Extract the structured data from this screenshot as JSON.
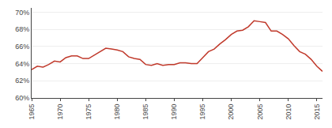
{
  "chart_data": {
    "type": "line",
    "x": [
      1965,
      1966,
      1967,
      1968,
      1969,
      1970,
      1971,
      1972,
      1973,
      1974,
      1975,
      1976,
      1977,
      1978,
      1979,
      1980,
      1981,
      1982,
      1983,
      1984,
      1985,
      1986,
      1987,
      1988,
      1989,
      1990,
      1991,
      1992,
      1993,
      1994,
      1995,
      1996,
      1997,
      1998,
      1999,
      2000,
      2001,
      2002,
      2003,
      2004,
      2005,
      2006,
      2007,
      2008,
      2009,
      2010,
      2011,
      2012,
      2013,
      2014,
      2015,
      2016
    ],
    "values": [
      63.3,
      63.7,
      63.6,
      63.9,
      64.3,
      64.2,
      64.7,
      64.9,
      64.9,
      64.6,
      64.6,
      65.0,
      65.4,
      65.8,
      65.7,
      65.6,
      65.4,
      64.8,
      64.6,
      64.5,
      63.9,
      63.8,
      64.0,
      63.8,
      63.9,
      63.9,
      64.1,
      64.1,
      64.0,
      64.0,
      64.7,
      65.4,
      65.7,
      66.3,
      66.8,
      67.4,
      67.8,
      67.9,
      68.3,
      69.0,
      68.9,
      68.8,
      67.8,
      67.8,
      67.4,
      66.9,
      66.1,
      65.4,
      65.1,
      64.5,
      63.7,
      63.1
    ],
    "color": "#c0392b",
    "xlim": [
      1965,
      2016
    ],
    "xticks": [
      1965,
      1970,
      1975,
      1980,
      1985,
      1990,
      1995,
      2000,
      2005,
      2010,
      2015
    ],
    "ylim": [
      60,
      70.5
    ],
    "yticks": [
      {
        "value": 60,
        "label": "60%"
      },
      {
        "value": 62,
        "label": "62%"
      },
      {
        "value": 64,
        "label": "64%"
      },
      {
        "value": 66,
        "label": "66%"
      },
      {
        "value": 68,
        "label": "68%"
      },
      {
        "value": 70,
        "label": "70%"
      }
    ],
    "grid": "y"
  }
}
